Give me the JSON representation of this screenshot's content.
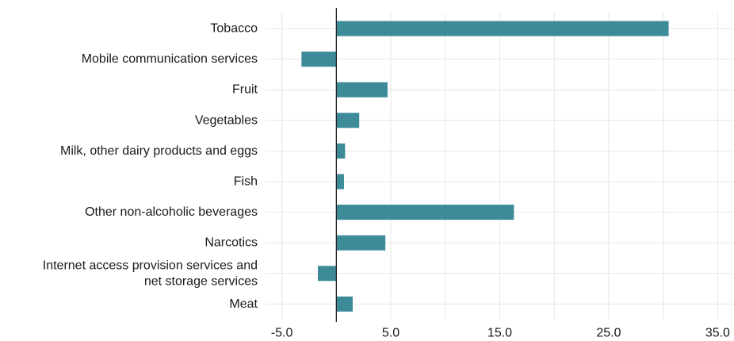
{
  "chart_data": {
    "type": "bar",
    "orientation": "horizontal",
    "categories": [
      [
        "Tobacco"
      ],
      [
        "Mobile communication services"
      ],
      [
        "Fruit"
      ],
      [
        "Vegetables"
      ],
      [
        "Milk, other dairy products and eggs"
      ],
      [
        "Fish"
      ],
      [
        "Other non-alcoholic beverages"
      ],
      [
        "Narcotics"
      ],
      [
        "Internet access provision services and",
        "net storage services"
      ],
      [
        "Meat"
      ]
    ],
    "values": [
      30.5,
      -3.2,
      4.7,
      2.1,
      0.8,
      0.7,
      16.3,
      4.5,
      -1.7,
      1.5
    ],
    "xlim": [
      -6.5,
      36.5
    ],
    "xticks": [
      -5.0,
      5.0,
      15.0,
      25.0,
      35.0
    ],
    "xtick_labels": [
      "-5.0",
      "5.0",
      "15.0",
      "25.0",
      "35.0"
    ],
    "grid": true,
    "bar_color": "#3d8a99",
    "zero_line_color": "#222222",
    "grid_color": "#e6e6e6"
  }
}
